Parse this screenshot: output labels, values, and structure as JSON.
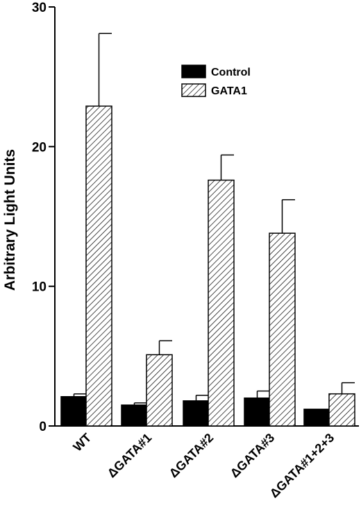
{
  "chart_data": {
    "type": "bar",
    "title": "",
    "xlabel": "",
    "ylabel": "Arbitrary Light Units",
    "ylim": [
      0,
      30
    ],
    "yticks": [
      0,
      10,
      20,
      30
    ],
    "grid": false,
    "legend_position": "top-right",
    "categories": [
      "WT",
      "ΔGATA#1",
      "ΔGATA#2",
      "ΔGATA#3",
      "ΔGATA#1+2+3"
    ],
    "series": [
      {
        "name": "Control",
        "fill": "solid",
        "color": "#000000",
        "values": [
          2.1,
          1.5,
          1.8,
          2.0,
          1.2
        ],
        "errors": [
          0.2,
          0.15,
          0.4,
          0.5,
          0
        ]
      },
      {
        "name": "GATA1",
        "fill": "hatched",
        "color": "#000000",
        "values": [
          22.9,
          5.1,
          17.6,
          13.8,
          2.3
        ],
        "errors": [
          5.2,
          1.0,
          1.8,
          2.4,
          0.8
        ]
      }
    ]
  }
}
